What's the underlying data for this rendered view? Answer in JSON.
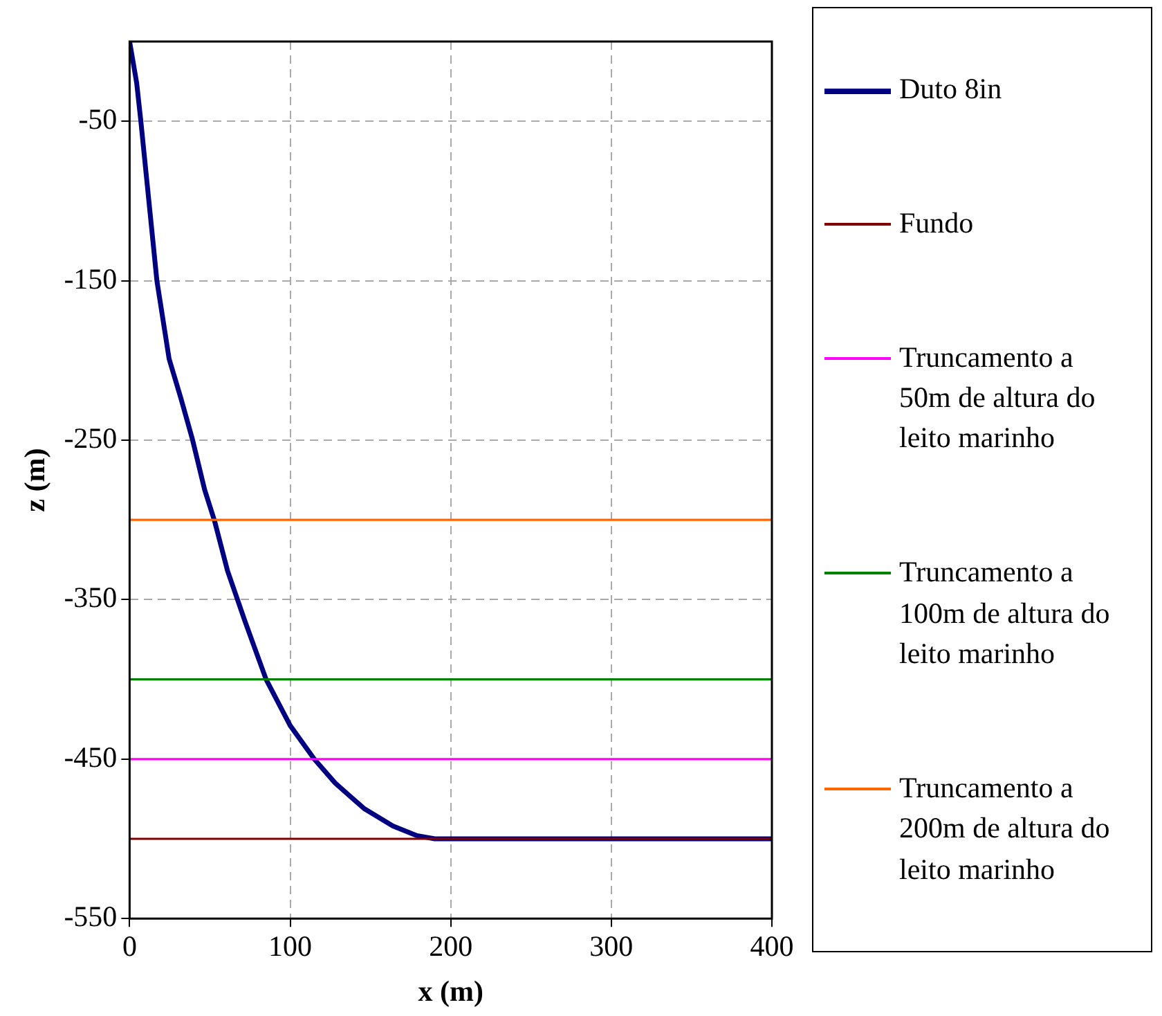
{
  "chart_data": {
    "type": "line",
    "xlabel": "x (m)",
    "ylabel": "z (m)",
    "xlim": [
      0,
      400
    ],
    "xticks": [
      0,
      100,
      200,
      300,
      400
    ],
    "ylim": [
      -550,
      0
    ],
    "yticks": [
      -550,
      -450,
      -350,
      -250,
      -150,
      -50
    ],
    "grid": true,
    "legend": "right",
    "marker": "none",
    "series": [
      {
        "name": "Duto 8in",
        "color": "#000080",
        "x": [
          0,
          4.4,
          7,
          11.8,
          17,
          24.6,
          32,
          39,
          46.7,
          53,
          61,
          72,
          85,
          100,
          115,
          128,
          146,
          164,
          179,
          190,
          400
        ],
        "values": [
          0,
          -26,
          -50,
          -98,
          -150,
          -199,
          -224,
          -249,
          -281,
          -301,
          -332,
          -364,
          -400,
          -429,
          -450,
          -465,
          -481,
          -492,
          -498,
          -500,
          -500
        ]
      },
      {
        "name": "Fundo",
        "color": "#800000",
        "x": [
          0,
          400
        ],
        "values": [
          -500,
          -500
        ]
      },
      {
        "name": "Truncamento a 50m de altura do leito marinho",
        "color": "#ff00ff",
        "x": [
          0,
          400
        ],
        "values": [
          -450,
          -450
        ]
      },
      {
        "name": "Truncamento a 100m de altura do leito marinho",
        "color": "#008000",
        "x": [
          0,
          400
        ],
        "values": [
          -400,
          -400
        ]
      },
      {
        "name": "Truncamento a 200m de altura do leito marinho",
        "color": "#ff6600",
        "x": [
          0,
          400
        ],
        "values": [
          -300,
          -300
        ]
      }
    ]
  }
}
